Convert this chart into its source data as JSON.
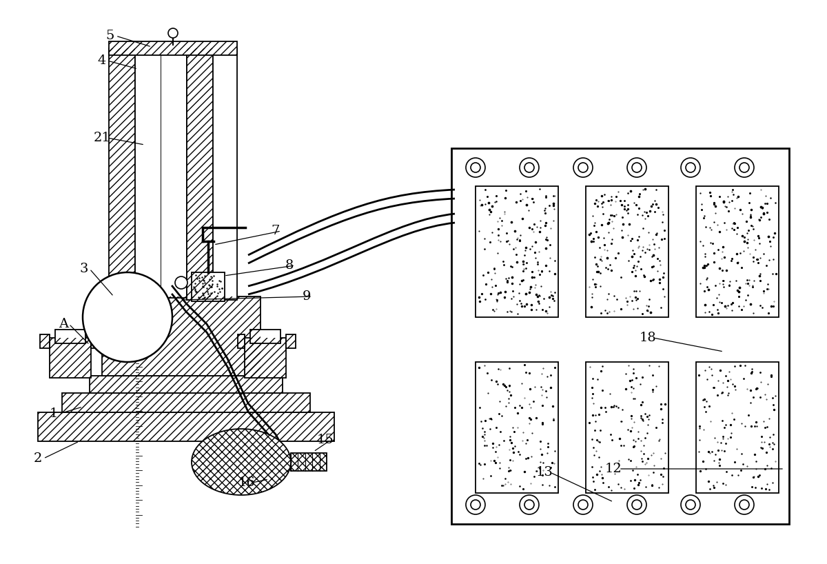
{
  "background_color": "#ffffff",
  "fig_width": 12.0,
  "fig_height": 8.18
}
